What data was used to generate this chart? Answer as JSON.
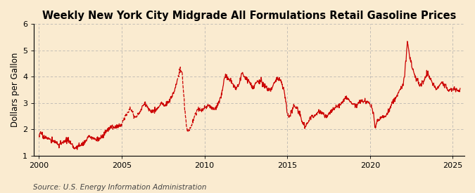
{
  "title": "Weekly New York City Midgrade All Formulations Retail Gasoline Prices",
  "ylabel": "Dollars per Gallon",
  "source": "Source: U.S. Energy Information Administration",
  "background_color": "#faebd0",
  "plot_bg_color": "#faebd0",
  "line_color": "#cc0000",
  "grid_color": "#aaaaaa",
  "ylim": [
    1,
    6
  ],
  "yticks": [
    1,
    2,
    3,
    4,
    5,
    6
  ],
  "xlim_start": 1999.7,
  "xlim_end": 2025.7,
  "xticks": [
    2000,
    2005,
    2010,
    2015,
    2020,
    2025
  ],
  "title_fontsize": 10.5,
  "ylabel_fontsize": 8.5,
  "source_fontsize": 7.5,
  "tick_fontsize": 8,
  "anchors": [
    [
      2000.0,
      1.78
    ],
    [
      2000.15,
      1.85
    ],
    [
      2000.25,
      1.72
    ],
    [
      2000.5,
      1.68
    ],
    [
      2000.7,
      1.58
    ],
    [
      2001.0,
      1.52
    ],
    [
      2001.2,
      1.42
    ],
    [
      2001.5,
      1.5
    ],
    [
      2001.7,
      1.62
    ],
    [
      2002.0,
      1.38
    ],
    [
      2002.2,
      1.28
    ],
    [
      2002.5,
      1.4
    ],
    [
      2002.8,
      1.52
    ],
    [
      2003.0,
      1.72
    ],
    [
      2003.3,
      1.65
    ],
    [
      2003.6,
      1.62
    ],
    [
      2003.9,
      1.75
    ],
    [
      2004.0,
      1.9
    ],
    [
      2004.2,
      2.0
    ],
    [
      2004.4,
      2.12
    ],
    [
      2004.6,
      2.05
    ],
    [
      2004.8,
      2.12
    ],
    [
      2005.0,
      2.2
    ],
    [
      2005.15,
      2.4
    ],
    [
      2005.3,
      2.6
    ],
    [
      2005.5,
      2.82
    ],
    [
      2005.6,
      2.72
    ],
    [
      2005.7,
      2.58
    ],
    [
      2005.8,
      2.45
    ],
    [
      2006.0,
      2.55
    ],
    [
      2006.2,
      2.8
    ],
    [
      2006.4,
      3.0
    ],
    [
      2006.5,
      2.9
    ],
    [
      2006.6,
      2.78
    ],
    [
      2006.8,
      2.68
    ],
    [
      2007.0,
      2.72
    ],
    [
      2007.2,
      2.82
    ],
    [
      2007.4,
      2.98
    ],
    [
      2007.6,
      2.88
    ],
    [
      2007.7,
      2.98
    ],
    [
      2007.9,
      3.08
    ],
    [
      2008.0,
      3.2
    ],
    [
      2008.2,
      3.5
    ],
    [
      2008.4,
      3.98
    ],
    [
      2008.55,
      4.28
    ],
    [
      2008.65,
      4.1
    ],
    [
      2008.7,
      3.6
    ],
    [
      2008.75,
      3.3
    ],
    [
      2008.8,
      2.8
    ],
    [
      2008.9,
      2.2
    ],
    [
      2008.95,
      1.98
    ],
    [
      2009.0,
      1.92
    ],
    [
      2009.1,
      2.0
    ],
    [
      2009.2,
      2.12
    ],
    [
      2009.3,
      2.28
    ],
    [
      2009.5,
      2.68
    ],
    [
      2009.7,
      2.78
    ],
    [
      2009.9,
      2.72
    ],
    [
      2010.0,
      2.82
    ],
    [
      2010.2,
      2.9
    ],
    [
      2010.4,
      2.82
    ],
    [
      2010.6,
      2.72
    ],
    [
      2010.8,
      2.95
    ],
    [
      2011.0,
      3.22
    ],
    [
      2011.2,
      3.92
    ],
    [
      2011.3,
      4.05
    ],
    [
      2011.5,
      3.88
    ],
    [
      2011.7,
      3.72
    ],
    [
      2011.9,
      3.52
    ],
    [
      2012.0,
      3.62
    ],
    [
      2012.1,
      3.75
    ],
    [
      2012.2,
      3.98
    ],
    [
      2012.3,
      4.1
    ],
    [
      2012.5,
      3.92
    ],
    [
      2012.7,
      3.82
    ],
    [
      2012.9,
      3.6
    ],
    [
      2013.0,
      3.65
    ],
    [
      2013.2,
      3.8
    ],
    [
      2013.4,
      3.82
    ],
    [
      2013.6,
      3.68
    ],
    [
      2013.8,
      3.55
    ],
    [
      2014.0,
      3.52
    ],
    [
      2014.2,
      3.72
    ],
    [
      2014.4,
      3.95
    ],
    [
      2014.6,
      3.88
    ],
    [
      2014.7,
      3.72
    ],
    [
      2014.8,
      3.45
    ],
    [
      2014.9,
      3.1
    ],
    [
      2015.0,
      2.58
    ],
    [
      2015.1,
      2.45
    ],
    [
      2015.2,
      2.62
    ],
    [
      2015.4,
      2.9
    ],
    [
      2015.5,
      2.85
    ],
    [
      2015.6,
      2.78
    ],
    [
      2015.7,
      2.65
    ],
    [
      2015.8,
      2.5
    ],
    [
      2015.9,
      2.28
    ],
    [
      2016.0,
      2.18
    ],
    [
      2016.1,
      2.08
    ],
    [
      2016.2,
      2.22
    ],
    [
      2016.4,
      2.42
    ],
    [
      2016.5,
      2.52
    ],
    [
      2016.6,
      2.48
    ],
    [
      2016.7,
      2.55
    ],
    [
      2016.9,
      2.65
    ],
    [
      2017.0,
      2.68
    ],
    [
      2017.2,
      2.58
    ],
    [
      2017.3,
      2.48
    ],
    [
      2017.5,
      2.55
    ],
    [
      2017.6,
      2.65
    ],
    [
      2017.8,
      2.75
    ],
    [
      2018.0,
      2.85
    ],
    [
      2018.2,
      2.95
    ],
    [
      2018.4,
      3.1
    ],
    [
      2018.5,
      3.22
    ],
    [
      2018.6,
      3.18
    ],
    [
      2018.7,
      3.12
    ],
    [
      2018.8,
      3.05
    ],
    [
      2018.9,
      2.98
    ],
    [
      2019.0,
      2.92
    ],
    [
      2019.2,
      2.88
    ],
    [
      2019.3,
      3.02
    ],
    [
      2019.5,
      3.1
    ],
    [
      2019.6,
      3.05
    ],
    [
      2019.7,
      3.08
    ],
    [
      2019.9,
      2.98
    ],
    [
      2020.0,
      2.92
    ],
    [
      2020.1,
      2.85
    ],
    [
      2020.2,
      2.62
    ],
    [
      2020.25,
      2.4
    ],
    [
      2020.3,
      2.1
    ],
    [
      2020.35,
      2.08
    ],
    [
      2020.4,
      2.25
    ],
    [
      2020.5,
      2.38
    ],
    [
      2020.6,
      2.4
    ],
    [
      2020.7,
      2.45
    ],
    [
      2020.8,
      2.5
    ],
    [
      2020.9,
      2.48
    ],
    [
      2021.0,
      2.55
    ],
    [
      2021.2,
      2.78
    ],
    [
      2021.4,
      3.05
    ],
    [
      2021.6,
      3.28
    ],
    [
      2021.8,
      3.45
    ],
    [
      2022.0,
      3.72
    ],
    [
      2022.1,
      4.08
    ],
    [
      2022.15,
      4.62
    ],
    [
      2022.2,
      4.88
    ],
    [
      2022.25,
      5.32
    ],
    [
      2022.3,
      5.2
    ],
    [
      2022.35,
      4.95
    ],
    [
      2022.4,
      4.75
    ],
    [
      2022.5,
      4.52
    ],
    [
      2022.6,
      4.22
    ],
    [
      2022.7,
      4.02
    ],
    [
      2022.8,
      3.88
    ],
    [
      2022.9,
      3.78
    ],
    [
      2023.0,
      3.68
    ],
    [
      2023.1,
      3.72
    ],
    [
      2023.2,
      3.8
    ],
    [
      2023.3,
      3.88
    ],
    [
      2023.4,
      4.05
    ],
    [
      2023.5,
      4.12
    ],
    [
      2023.55,
      4.02
    ],
    [
      2023.6,
      3.95
    ],
    [
      2023.7,
      3.82
    ],
    [
      2023.8,
      3.7
    ],
    [
      2023.9,
      3.62
    ],
    [
      2024.0,
      3.55
    ],
    [
      2024.1,
      3.6
    ],
    [
      2024.2,
      3.68
    ],
    [
      2024.3,
      3.75
    ],
    [
      2024.4,
      3.72
    ],
    [
      2024.5,
      3.68
    ],
    [
      2024.6,
      3.58
    ],
    [
      2024.7,
      3.5
    ],
    [
      2024.8,
      3.45
    ],
    [
      2024.9,
      3.48
    ],
    [
      2025.0,
      3.52
    ],
    [
      2025.1,
      3.52
    ],
    [
      2025.2,
      3.5
    ],
    [
      2025.3,
      3.48
    ],
    [
      2025.4,
      3.5
    ]
  ],
  "dashed_start": 2005.0,
  "dashed_end": 2006.0,
  "dashed_start2": 2009.0,
  "dashed_end2": 2010.2
}
